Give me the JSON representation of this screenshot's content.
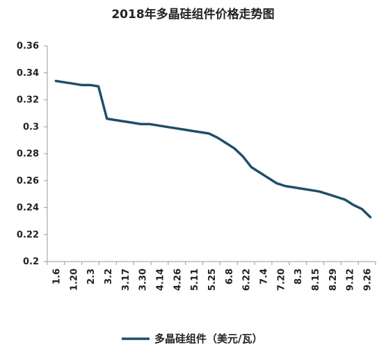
{
  "chart_data": {
    "type": "line",
    "title": "2018年多晶硅组件价格走势图",
    "xlabel": "",
    "ylabel": "",
    "ylim": [
      0.2,
      0.36
    ],
    "yticks": [
      "0.36",
      "0.34",
      "0.32",
      "0.3",
      "0.28",
      "0.26",
      "0.24",
      "0.22",
      "0.2"
    ],
    "x_tick_labels": [
      "1.6",
      "1.20",
      "2.3",
      "3.2",
      "3.17",
      "3.30",
      "4.14",
      "4.26",
      "5.11",
      "5.25",
      "6.8",
      "6.22",
      "7.4",
      "7.20",
      "8.3",
      "8.15",
      "8.29",
      "9.12",
      "9.26"
    ],
    "grid": false,
    "legend_position": "bottom",
    "series": [
      {
        "name": "多晶硅组件（美元/瓦）",
        "color": "#1f4e6b",
        "values": [
          0.334,
          0.333,
          0.332,
          0.331,
          0.331,
          0.33,
          0.306,
          0.305,
          0.304,
          0.303,
          0.302,
          0.302,
          0.301,
          0.3,
          0.299,
          0.298,
          0.297,
          0.296,
          0.295,
          0.292,
          0.288,
          0.284,
          0.278,
          0.27,
          0.266,
          0.262,
          0.258,
          0.256,
          0.255,
          0.254,
          0.253,
          0.252,
          0.25,
          0.248,
          0.246,
          0.242,
          0.239,
          0.233
        ]
      }
    ]
  }
}
